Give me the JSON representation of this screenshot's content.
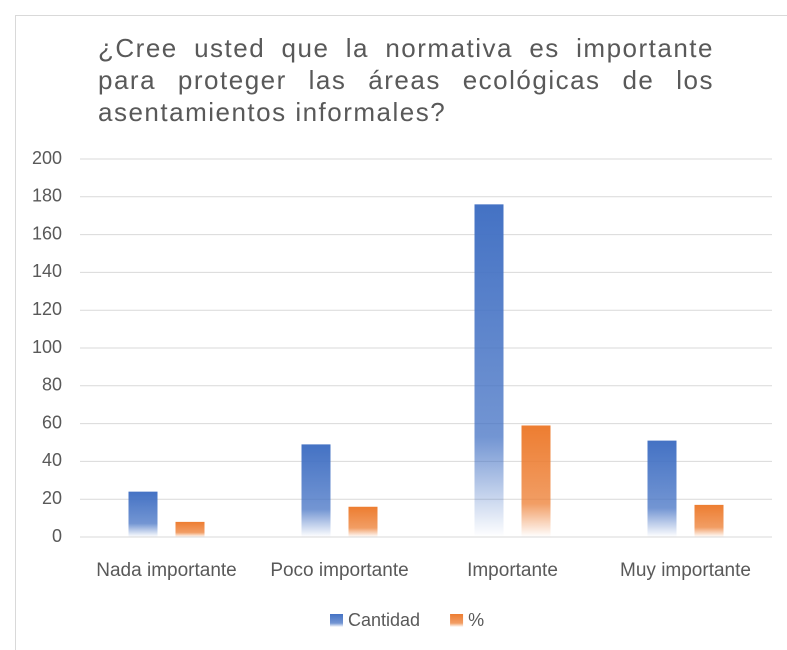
{
  "chart_data": {
    "type": "bar",
    "title": "¿Cree usted que la normativa es importante para proteger las áreas ecológicas de los asentamientos informales?",
    "categories": [
      "Nada importante",
      "Poco importante",
      "Importante",
      "Muy importante"
    ],
    "series": [
      {
        "name": "Cantidad",
        "color": "#4472c4",
        "values": [
          24,
          49,
          176,
          51
        ]
      },
      {
        "name": "%",
        "color": "#ed7d31",
        "values": [
          8,
          16,
          59,
          17
        ]
      }
    ],
    "ylim": [
      0,
      200
    ],
    "yticks": [
      0,
      20,
      40,
      60,
      80,
      100,
      120,
      140,
      160,
      180,
      200
    ],
    "grid": true,
    "legend": "bottom"
  }
}
